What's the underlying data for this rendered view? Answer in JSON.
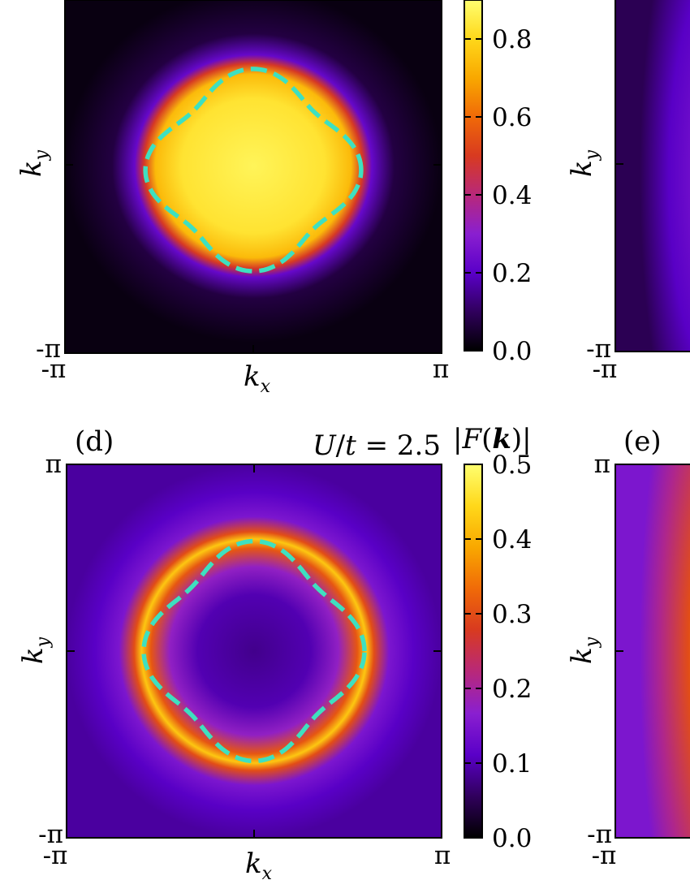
{
  "chart_data": [
    {
      "type": "heatmap",
      "panel": "",
      "title": "",
      "colorbar_label": "",
      "xlabel": "k_x",
      "ylabel": "k_y",
      "x_tick_labels": [
        "-π",
        "π"
      ],
      "y_tick_labels": [
        "-π"
      ],
      "xlim": [
        -3.14159,
        3.14159
      ],
      "ylim": [
        -3.14159,
        3.14159
      ],
      "colorbar_range": [
        0.0,
        1.0
      ],
      "colorbar_ticks": [
        0.0,
        0.2,
        0.4,
        0.6,
        0.8
      ],
      "colorbar_tick_labels": [
        "0.0",
        "0.2",
        "0.4",
        "0.6",
        "0.8"
      ],
      "surface": {
        "kind": "filled Fermi sea",
        "peak_value": 0.97,
        "background_value": 0.03,
        "contour_half_width_axis": 1.8,
        "contour_half_width_diagonal": 1.45
      },
      "overlay_curve": {
        "style": "dashed",
        "color": "#3ee0c0",
        "shape": "rounded diamond Fermi surface"
      }
    },
    {
      "type": "heatmap",
      "panel": "(d)",
      "title": "U/t = 2.5",
      "colorbar_label": "|F(k)|",
      "xlabel": "k_x",
      "ylabel": "k_y",
      "x_tick_labels": [
        "-π",
        "π"
      ],
      "y_tick_labels": [
        "π",
        "-π"
      ],
      "xlim": [
        -3.14159,
        3.14159
      ],
      "ylim": [
        -3.14159,
        3.14159
      ],
      "colorbar_range": [
        0.0,
        0.5
      ],
      "colorbar_ticks": [
        0.0,
        0.1,
        0.2,
        0.3,
        0.4,
        0.5
      ],
      "colorbar_tick_labels": [
        "0.0",
        "0.1",
        "0.2",
        "0.3",
        "0.4",
        "0.5"
      ],
      "surface": {
        "kind": "ring along Fermi surface",
        "peak_value": 0.46,
        "center_value": 0.09,
        "background_value": 0.12,
        "contour_half_width_axis": 1.85,
        "contour_half_width_diagonal": 1.5
      },
      "overlay_curve": {
        "style": "dashed",
        "color": "#3ee0c0",
        "shape": "rounded diamond Fermi surface"
      }
    },
    {
      "type": "heatmap",
      "panel": "",
      "ylabel": "k_y",
      "y_tick_labels": [
        "-π"
      ],
      "x_tick_labels": [
        "-π"
      ],
      "note": "cropped at right edge"
    },
    {
      "type": "heatmap",
      "panel": "(e)",
      "ylabel": "k_y",
      "y_tick_labels": [
        "π",
        "-π"
      ],
      "x_tick_labels": [
        "-π"
      ],
      "note": "cropped at right edge"
    }
  ],
  "colors": {
    "colormap": [
      "#000000",
      "#30005c",
      "#5a00c8",
      "#8a1fd0",
      "#b8287a",
      "#d83a20",
      "#f06a08",
      "#f9a800",
      "#ffd81a",
      "#ffff70"
    ],
    "contour": "#3ee0c0"
  }
}
